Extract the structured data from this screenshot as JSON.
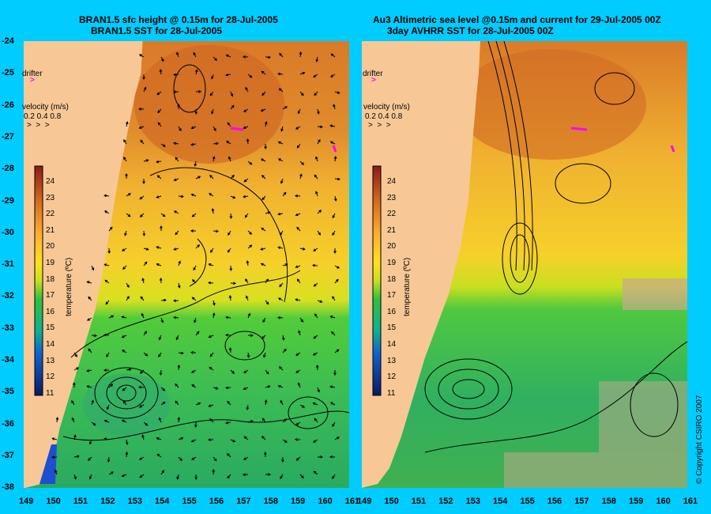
{
  "left_panel": {
    "title_line1": "BRAN1.5 sfc height @ 0.15m for 28-Jul-2005",
    "title_line2": "BRAN1.5 SST for 28-Jul-2005",
    "drifter_label": "drifter",
    "velocity_label": "velocity (m/s)",
    "velocity_scale": "0.2 0.4 0.8",
    "colorbar_label": "temperature (ºC)",
    "colorbar_ticks": [
      "24",
      "23",
      "22",
      "21",
      "20",
      "19",
      "18",
      "17",
      "16",
      "15",
      "14",
      "13",
      "12",
      "11"
    ]
  },
  "right_panel": {
    "title_line1": "Au3 Altimetric sea level  @0.15m and current for 29-Jul-2005 00Z",
    "title_line2": "3day AVHRR SST for 28-Jul-2005 00Z",
    "drifter_label": "drifter",
    "velocity_label": "velocity (m/s)",
    "velocity_scale": "0.2 0.4 0.8",
    "colorbar_label": "temperature (ºC)",
    "colorbar_ticks": [
      "24",
      "23",
      "22",
      "21",
      "20",
      "19",
      "18",
      "17",
      "16",
      "15",
      "14",
      "13",
      "12",
      "11"
    ]
  },
  "y_axis": [
    "-24",
    "-25",
    "-26",
    "-27",
    "-28",
    "-29",
    "-30",
    "-31",
    "-32",
    "-33",
    "-34",
    "-35",
    "-36",
    "-37",
    "-38"
  ],
  "left_x_axis": [
    "149",
    "150",
    "151",
    "152",
    "153",
    "154",
    "155",
    "156",
    "157",
    "158",
    "159",
    "160",
    "161"
  ],
  "right_x_axis": [
    "149",
    "150",
    "151",
    "152",
    "153",
    "154",
    "155",
    "156",
    "157",
    "158",
    "159",
    "160",
    "161"
  ],
  "copyright": "© Copyright CSIRO 2007",
  "colors": {
    "background": "#00ccff",
    "land": "#f7c896",
    "warm": "#d2691e",
    "drifter": "#ff00ff"
  }
}
